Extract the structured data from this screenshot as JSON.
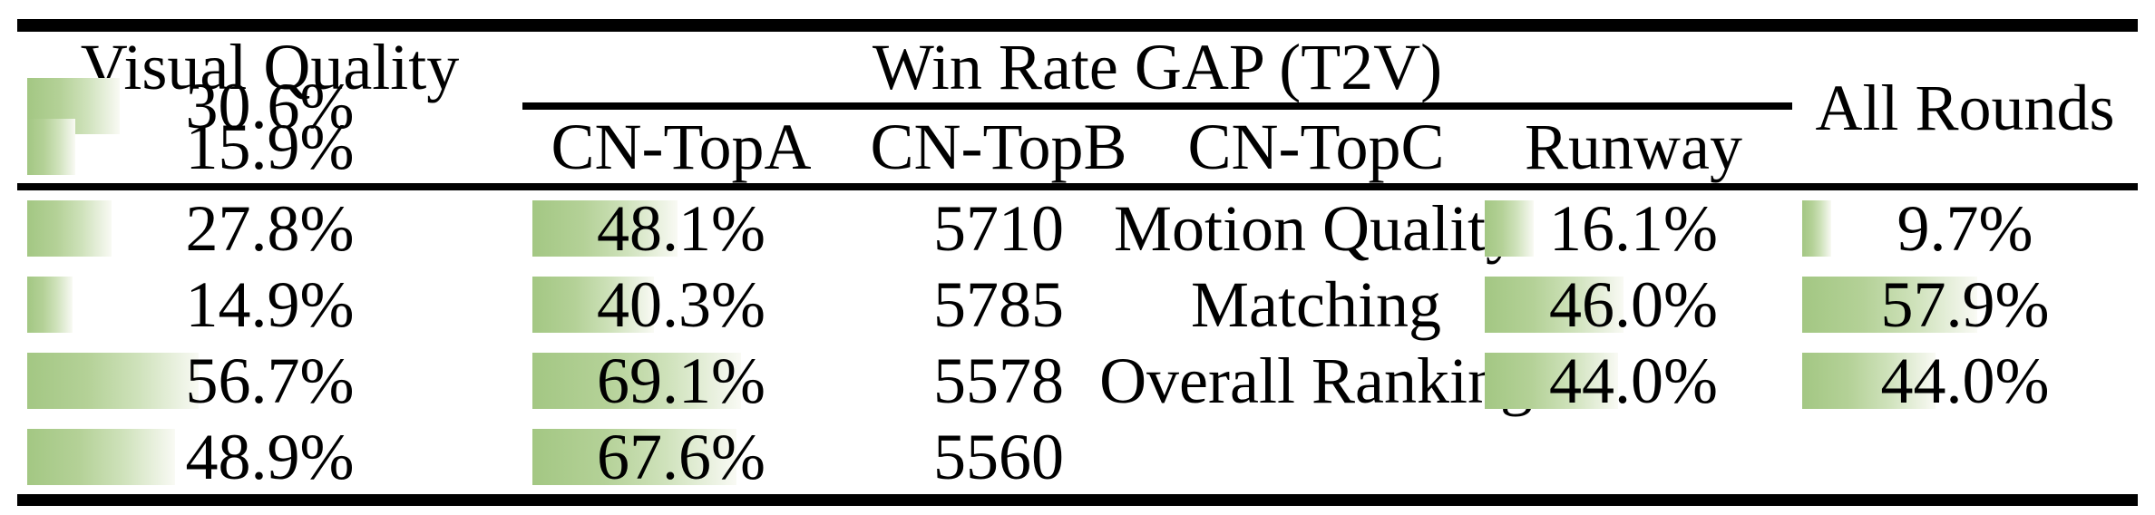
{
  "table": {
    "group_header": "Win Rate GAP (T2V)",
    "all_rounds_header": "All Rounds",
    "columns": [
      "CN-TopA",
      "CN-TopB",
      "CN-TopC",
      "Runway"
    ],
    "rows": [
      {
        "label": "Visual Quality",
        "cells": [
          {
            "pct": 30.6,
            "text": "30.6%"
          },
          {
            "pct": 15.9,
            "text": "15.9%"
          },
          {
            "pct": 27.8,
            "text": "27.8%"
          },
          {
            "pct": 48.1,
            "text": "48.1%"
          }
        ],
        "all_rounds": "5710"
      },
      {
        "label": "Motion Quality",
        "cells": [
          {
            "pct": 16.1,
            "text": "16.1%"
          },
          {
            "pct": 9.7,
            "text": "9.7%"
          },
          {
            "pct": 14.9,
            "text": "14.9%"
          },
          {
            "pct": 40.3,
            "text": "40.3%"
          }
        ],
        "all_rounds": "5785"
      },
      {
        "label": "Matching",
        "cells": [
          {
            "pct": 46.0,
            "text": "46.0%"
          },
          {
            "pct": 57.9,
            "text": "57.9%"
          },
          {
            "pct": 56.7,
            "text": "56.7%"
          },
          {
            "pct": 69.1,
            "text": "69.1%"
          }
        ],
        "all_rounds": "5578"
      },
      {
        "label": "Overall Ranking",
        "cells": [
          {
            "pct": 44.0,
            "text": "44.0%"
          },
          {
            "pct": 44.0,
            "text": "44.0%"
          },
          {
            "pct": 48.9,
            "text": "48.9%"
          },
          {
            "pct": 67.6,
            "text": "67.6%"
          }
        ],
        "all_rounds": "5560"
      }
    ]
  },
  "colors": {
    "rule_black": "#000000",
    "bar_green_start": "#a3c783",
    "bar_green_end": "#f9faf4"
  },
  "chart_data": {
    "type": "table",
    "title": "Win Rate GAP (T2V)",
    "columns": [
      "CN-TopA",
      "CN-TopB",
      "CN-TopC",
      "Runway",
      "All Rounds"
    ],
    "row_labels": [
      "Visual Quality",
      "Motion Quality",
      "Matching",
      "Overall Ranking"
    ],
    "series": [
      {
        "name": "CN-TopA",
        "values": [
          30.6,
          16.1,
          46.0,
          44.0
        ]
      },
      {
        "name": "CN-TopB",
        "values": [
          15.9,
          9.7,
          57.9,
          44.0
        ]
      },
      {
        "name": "CN-TopC",
        "values": [
          27.8,
          14.9,
          56.7,
          48.9
        ]
      },
      {
        "name": "Runway",
        "values": [
          48.1,
          40.3,
          69.1,
          67.6
        ]
      }
    ],
    "all_rounds": [
      5710,
      5785,
      5578,
      5560
    ],
    "value_unit": "%",
    "bar_scale": [
      0,
      100
    ],
    "layout": "in-cell horizontal data bars, green gradient, bar length proportional to percent"
  }
}
